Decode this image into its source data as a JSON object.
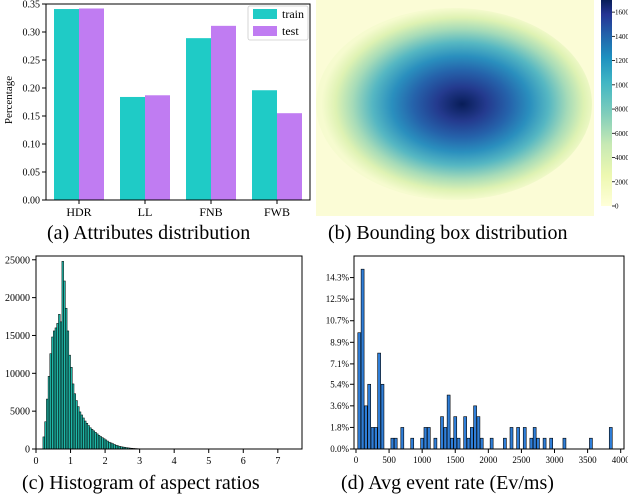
{
  "captions": {
    "a": "(a) Attributes distribution",
    "b": "(b) Bounding box distribution",
    "c": "(c) Histogram of aspect ratios",
    "d": "(d) Avg event rate (Ev/ms)"
  },
  "chart_data": [
    {
      "id": "a",
      "type": "bar",
      "categories": [
        "HDR",
        "LL",
        "FNB",
        "FWB"
      ],
      "series": [
        {
          "name": "train",
          "values": [
            0.341,
            0.184,
            0.289,
            0.196
          ],
          "color": "#1fcbc6"
        },
        {
          "name": "test",
          "values": [
            0.342,
            0.187,
            0.311,
            0.155
          ],
          "color": "#c07cf2"
        }
      ],
      "ylabel": "Percentage",
      "ylim": [
        0,
        0.35
      ],
      "yticks": [
        "0.00",
        "0.05",
        "0.10",
        "0.15",
        "0.20",
        "0.25",
        "0.30",
        "0.35"
      ],
      "legend": "top-right"
    },
    {
      "id": "b",
      "type": "heatmap",
      "colormap": "YlGnBu",
      "colorbar_ticks": [
        "0",
        "2000",
        "4000",
        "6000",
        "8000",
        "10000",
        "12000",
        "14000",
        "16000"
      ],
      "colorbar_max": 17000,
      "peak_value": 17000
    },
    {
      "id": "c",
      "type": "bar",
      "histogram": true,
      "color": "#1fb8a8",
      "xlim": [
        0,
        7.7
      ],
      "ylim": [
        0,
        25500
      ],
      "xticks": [
        "0",
        "1",
        "2",
        "3",
        "4",
        "5",
        "6",
        "7"
      ],
      "yticks": [
        "0",
        "5000",
        "10000",
        "15000",
        "20000",
        "25000"
      ],
      "bin_start": 0.2,
      "bin_width": 0.05,
      "values": [
        1600,
        3600,
        6600,
        9600,
        12600,
        14800,
        15600,
        16000,
        16600,
        17800,
        16800,
        24800,
        22200,
        18600,
        15600,
        12400,
        10800,
        8600,
        7300,
        6400,
        5600,
        4900,
        4500,
        4100,
        3700,
        3400,
        3100,
        2800,
        2600,
        2400,
        2200,
        2000,
        1800,
        1650,
        1500,
        1350,
        1200,
        1050,
        900,
        800,
        700,
        600,
        500,
        420,
        350,
        300,
        260,
        220,
        180,
        150,
        120,
        100,
        80,
        65,
        50,
        40,
        30
      ]
    },
    {
      "id": "d",
      "type": "bar",
      "histogram": true,
      "color": "#2f7ed8",
      "xlim": [
        -30,
        4050
      ],
      "ylim": [
        0,
        16.1
      ],
      "xticks": [
        "0",
        "500",
        "1000",
        "1500",
        "2000",
        "2500",
        "3000",
        "3500",
        "4000"
      ],
      "yticks": [
        "0.0%",
        "1.8%",
        "3.6%",
        "5.4%",
        "7.1%",
        "8.9%",
        "10.7%",
        "12.5%",
        "14.3%"
      ],
      "bins": [
        {
          "x": 50,
          "v": 9.7
        },
        {
          "x": 100,
          "v": 15.0
        },
        {
          "x": 150,
          "v": 3.6
        },
        {
          "x": 200,
          "v": 5.4
        },
        {
          "x": 250,
          "v": 1.8
        },
        {
          "x": 300,
          "v": 1.8
        },
        {
          "x": 350,
          "v": 8.0
        },
        {
          "x": 400,
          "v": 5.4
        },
        {
          "x": 550,
          "v": 0.9
        },
        {
          "x": 600,
          "v": 0.9
        },
        {
          "x": 700,
          "v": 1.8
        },
        {
          "x": 850,
          "v": 0.9
        },
        {
          "x": 1000,
          "v": 0.9
        },
        {
          "x": 1050,
          "v": 1.8
        },
        {
          "x": 1100,
          "v": 1.8
        },
        {
          "x": 1200,
          "v": 0.9
        },
        {
          "x": 1300,
          "v": 2.7
        },
        {
          "x": 1350,
          "v": 1.8
        },
        {
          "x": 1400,
          "v": 4.5
        },
        {
          "x": 1450,
          "v": 0.9
        },
        {
          "x": 1500,
          "v": 2.7
        },
        {
          "x": 1550,
          "v": 0.9
        },
        {
          "x": 1650,
          "v": 2.7
        },
        {
          "x": 1700,
          "v": 0.9
        },
        {
          "x": 1750,
          "v": 1.8
        },
        {
          "x": 1800,
          "v": 3.6
        },
        {
          "x": 1850,
          "v": 2.7
        },
        {
          "x": 1900,
          "v": 0.9
        },
        {
          "x": 2050,
          "v": 0.9
        },
        {
          "x": 2250,
          "v": 0.9
        },
        {
          "x": 2350,
          "v": 1.8
        },
        {
          "x": 2450,
          "v": 1.8
        },
        {
          "x": 2550,
          "v": 1.8
        },
        {
          "x": 2650,
          "v": 0.9
        },
        {
          "x": 2700,
          "v": 1.8
        },
        {
          "x": 2750,
          "v": 0.9
        },
        {
          "x": 2850,
          "v": 0.9
        },
        {
          "x": 2950,
          "v": 0.9
        },
        {
          "x": 3150,
          "v": 0.9
        },
        {
          "x": 3550,
          "v": 0.9
        },
        {
          "x": 3850,
          "v": 1.8
        }
      ]
    }
  ]
}
